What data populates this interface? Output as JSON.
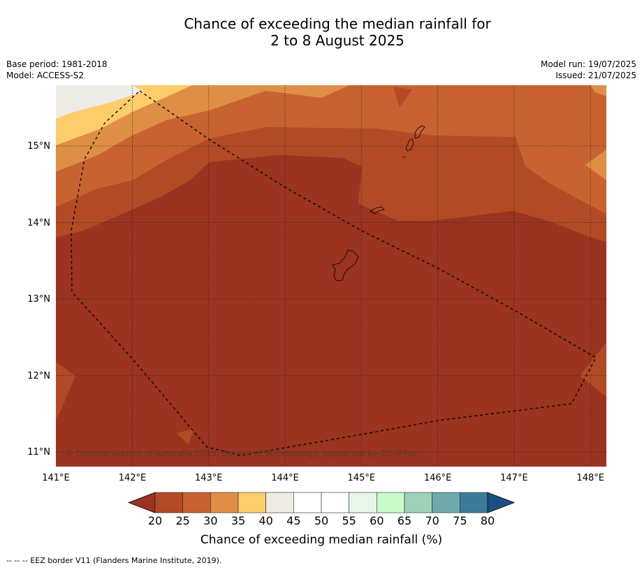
{
  "title": {
    "line1": "Chance of exceeding the median rainfall for",
    "line2": "2 to 8 August 2025"
  },
  "meta": {
    "base_period": "Base period: 1981-2018",
    "model": "Model: ACCESS-S2",
    "model_run": "Model run: 19/07/2025",
    "issued": "Issued: 21/07/2025"
  },
  "map": {
    "lon_ticks": [
      "141°E",
      "142°E",
      "143°E",
      "144°E",
      "145°E",
      "146°E",
      "147°E",
      "148°E"
    ],
    "lat_ticks": [
      "15°N",
      "14°N",
      "13°N",
      "12°N",
      "11°N"
    ],
    "copyright": "© Commonwealth of Australia 2025, Bureau of Meteorology, supported by COSPPac",
    "zones": [
      {
        "range": "20-25",
        "color": "#9a3320"
      },
      {
        "range": "25-30",
        "color": "#b34a26"
      },
      {
        "range": "30-35",
        "color": "#c96231"
      },
      {
        "range": "35-40",
        "color": "#de8f45"
      },
      {
        "range": "40-45",
        "color": "#fdcc6b"
      },
      {
        "range": "45-50",
        "color": "#eeebe7"
      }
    ]
  },
  "colorbar": {
    "title": "Chance of exceeding median rainfall (%)",
    "ticks": [
      "20",
      "25",
      "30",
      "35",
      "40",
      "45",
      "50",
      "55",
      "60",
      "65",
      "70",
      "75",
      "80"
    ],
    "colors": [
      "#b34a26",
      "#c96231",
      "#de8f45",
      "#fdcc6b",
      "#eeebe7",
      "#ffffff",
      "#ffffff",
      "#e8f6e9",
      "#c8fbcc",
      "#9ed2b8",
      "#70a9aa",
      "#3e7b99"
    ],
    "under_color": "#9a3320",
    "over_color": "#1b4f85"
  },
  "footnote": "--  --  -- EEZ border V11 (Flanders Marine Institute, 2019)."
}
